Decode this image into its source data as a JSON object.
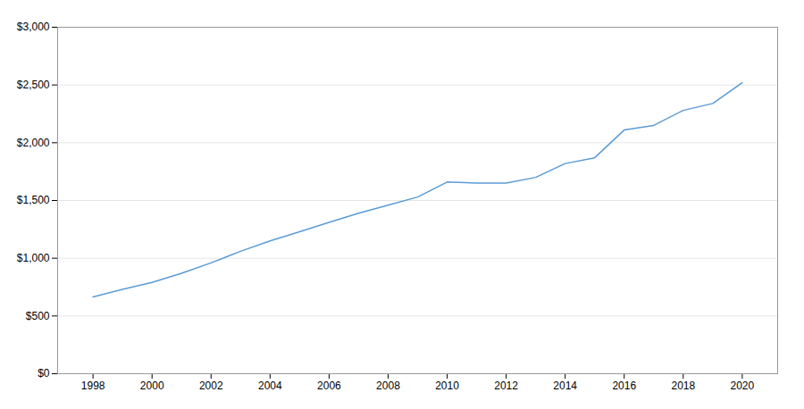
{
  "chart_data": {
    "type": "line",
    "x": [
      1998,
      1999,
      2000,
      2001,
      2002,
      2003,
      2004,
      2005,
      2006,
      2007,
      2008,
      2009,
      2010,
      2011,
      2012,
      2013,
      2014,
      2015,
      2016,
      2017,
      2018,
      2019,
      2020
    ],
    "values": [
      665,
      730,
      790,
      870,
      960,
      1060,
      1150,
      1230,
      1310,
      1390,
      1460,
      1530,
      1660,
      1650,
      1650,
      1700,
      1820,
      1870,
      2110,
      2150,
      2280,
      2340,
      2520
    ],
    "color": "#5b9bd5",
    "xlim": [
      1996.8,
      2021.2
    ],
    "xticks": [
      1998,
      2000,
      2002,
      2004,
      2006,
      2008,
      2010,
      2012,
      2014,
      2016,
      2018,
      2020
    ],
    "ylim": [
      0,
      3000
    ],
    "yticks": [
      {
        "value": 0,
        "label": "$0"
      },
      {
        "value": 500,
        "label": "$500"
      },
      {
        "value": 1000,
        "label": "$1,000"
      },
      {
        "value": 1500,
        "label": "$1,500"
      },
      {
        "value": 2000,
        "label": "$2,000"
      },
      {
        "value": 2500,
        "label": "$2,500"
      },
      {
        "value": 3000,
        "label": "$3,000"
      }
    ],
    "grid": true
  }
}
